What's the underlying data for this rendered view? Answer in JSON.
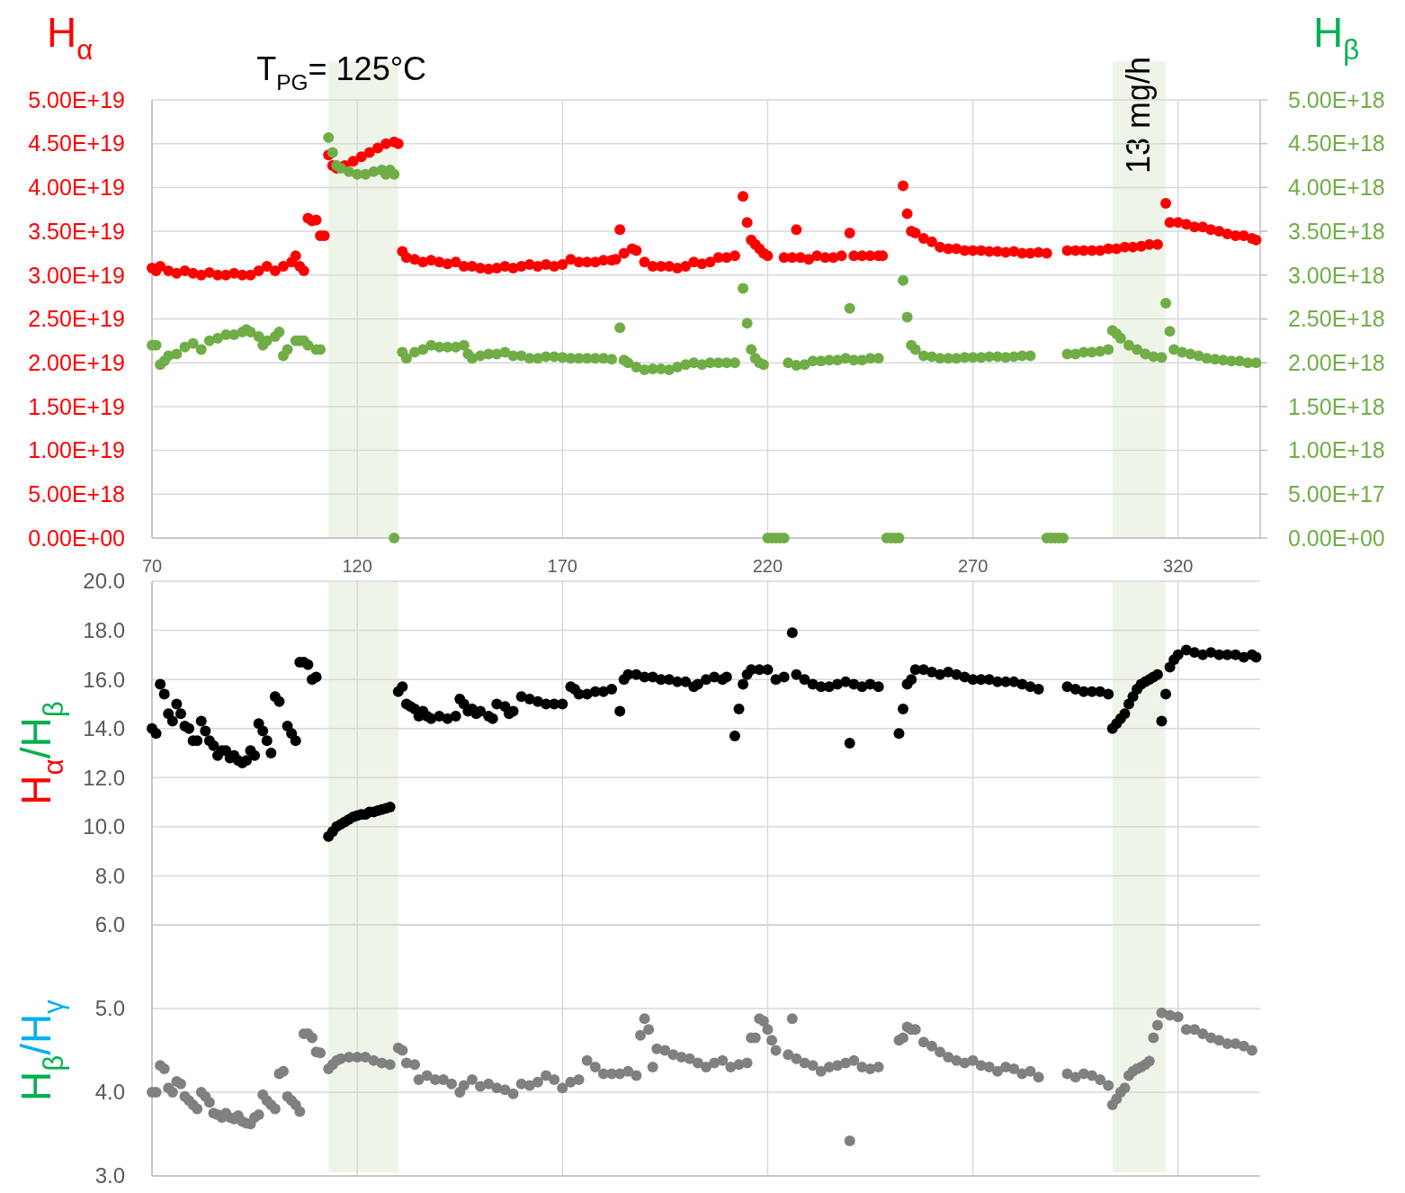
{
  "chart_data": [
    {
      "type": "scatter",
      "ylabel": "H$_{α}$",
      "y2label": "H$_{β}$",
      "xlim": [
        70,
        340
      ],
      "xticks": [
        70,
        120,
        170,
        220,
        270,
        320
      ],
      "ylim": [
        0,
        5e+19
      ],
      "yticks": [
        {
          "value": 0,
          "label": "0.00E+00"
        },
        {
          "value": 5e+18,
          "label": "5.00E+18"
        },
        {
          "value": 1e+19,
          "label": "1.00E+19"
        },
        {
          "value": 1.5e+19,
          "label": "1.50E+19"
        },
        {
          "value": 2e+19,
          "label": "2.00E+19"
        },
        {
          "value": 2.5e+19,
          "label": "2.50E+19"
        },
        {
          "value": 3e+19,
          "label": "3.00E+19"
        },
        {
          "value": 3.5e+19,
          "label": "3.50E+19"
        },
        {
          "value": 4e+19,
          "label": "4.00E+19"
        },
        {
          "value": 4.5e+19,
          "label": "4.50E+19"
        },
        {
          "value": 5e+19,
          "label": "5.00E+19"
        }
      ],
      "y2lim": [
        0,
        5e+18
      ],
      "y2ticks": [
        {
          "value": 0,
          "label": "0.00E+00"
        },
        {
          "value": 5e+17,
          "label": "5.00E+17"
        },
        {
          "value": 1e+18,
          "label": "1.00E+18"
        },
        {
          "value": 1.5e+18,
          "label": "1.50E+18"
        },
        {
          "value": 2e+18,
          "label": "2.00E+18"
        },
        {
          "value": 2.5e+18,
          "label": "2.50E+18"
        },
        {
          "value": 3e+18,
          "label": "3.00E+18"
        },
        {
          "value": 3.5e+18,
          "label": "3.50E+18"
        },
        {
          "value": 4e+18,
          "label": "4.00E+18"
        },
        {
          "value": 4.5e+18,
          "label": "4.50E+18"
        },
        {
          "value": 5e+18,
          "label": "5.00E+18"
        }
      ],
      "grid": true,
      "marker": "circle",
      "bands": [
        {
          "axis": "x",
          "from": 113,
          "to": 130,
          "label": "T$_{PG}$= 125°C",
          "color": "#eef5e8"
        },
        {
          "axis": "x",
          "from": 304,
          "to": 317,
          "label": "13 mg/h",
          "color": "#eef5e8"
        }
      ],
      "series": [
        {
          "color": "#ff0000",
          "x": [
            70,
            71,
            72,
            74,
            76,
            78,
            80,
            82,
            84,
            86,
            88,
            90,
            92,
            94,
            96,
            98,
            100,
            102,
            104,
            105,
            106,
            107,
            108,
            109,
            110,
            111,
            112,
            113,
            114,
            115,
            117,
            119,
            121,
            123,
            125,
            127,
            129,
            130,
            131,
            132,
            134,
            136,
            138,
            140,
            142,
            144,
            146,
            148,
            150,
            152,
            154,
            156,
            158,
            160,
            162,
            164,
            166,
            168,
            170,
            172,
            174,
            176,
            178,
            180,
            182,
            183,
            184,
            185,
            187,
            188,
            190,
            192,
            194,
            196,
            198,
            200,
            202,
            204,
            206,
            208,
            210,
            212,
            214,
            215,
            216,
            217,
            218,
            219,
            220,
            224,
            226,
            227,
            228,
            230,
            232,
            234,
            236,
            238,
            240,
            241,
            243,
            245,
            247,
            248,
            253,
            254,
            255,
            256,
            258,
            260,
            262,
            264,
            266,
            268,
            270,
            272,
            274,
            276,
            278,
            280,
            282,
            284,
            286,
            288,
            293,
            295,
            297,
            299,
            301,
            303,
            305,
            307,
            309,
            311,
            313,
            315,
            317,
            318,
            320,
            322,
            324,
            326,
            328,
            330,
            332,
            334,
            336,
            338,
            339
          ],
          "values": [
            3.08e+19,
            3.05e+19,
            3.1e+19,
            3.05e+19,
            3.02e+19,
            3.05e+19,
            3.02e+19,
            3e+19,
            3.03e+19,
            3e+19,
            3e+19,
            3.02e+19,
            3e+19,
            3e+19,
            3.05e+19,
            3.1e+19,
            3.05e+19,
            3.1e+19,
            3.15e+19,
            3.22e+19,
            3.1e+19,
            3.05e+19,
            3.65e+19,
            3.62e+19,
            3.63e+19,
            3.45e+19,
            3.45e+19,
            4.37e+19,
            4.25e+19,
            4.22e+19,
            4.25e+19,
            4.3e+19,
            4.35e+19,
            4.4e+19,
            4.45e+19,
            4.5e+19,
            4.52e+19,
            4.5e+19,
            3.27e+19,
            3.2e+19,
            3.18e+19,
            3.15e+19,
            3.17e+19,
            3.15e+19,
            3.13e+19,
            3.15e+19,
            3.1e+19,
            3.1e+19,
            3.08e+19,
            3.07e+19,
            3.08e+19,
            3.1e+19,
            3.08e+19,
            3.1e+19,
            3.12e+19,
            3.1e+19,
            3.12e+19,
            3.1e+19,
            3.12e+19,
            3.18e+19,
            3.15e+19,
            3.15e+19,
            3.15e+19,
            3.17e+19,
            3.17e+19,
            3.18e+19,
            3.52e+19,
            3.25e+19,
            3.3e+19,
            3.28e+19,
            3.15e+19,
            3.1e+19,
            3.1e+19,
            3.1e+19,
            3.08e+19,
            3.1e+19,
            3.15e+19,
            3.13e+19,
            3.15e+19,
            3.2e+19,
            3.2e+19,
            3.22e+19,
            3.9e+19,
            3.6e+19,
            3.4e+19,
            3.35e+19,
            3.3e+19,
            3.25e+19,
            3.22e+19,
            3.2e+19,
            3.2e+19,
            3.52e+19,
            3.2e+19,
            3.18e+19,
            3.22e+19,
            3.2e+19,
            3.2e+19,
            3.22e+19,
            3.48e+19,
            3.22e+19,
            3.22e+19,
            3.22e+19,
            3.22e+19,
            3.22e+19,
            4.02e+19,
            3.7e+19,
            3.5e+19,
            3.48e+19,
            3.42e+19,
            3.38e+19,
            3.32e+19,
            3.3e+19,
            3.3e+19,
            3.28e+19,
            3.28e+19,
            3.28e+19,
            3.27e+19,
            3.27e+19,
            3.26e+19,
            3.27e+19,
            3.25e+19,
            3.25e+19,
            3.26e+19,
            3.25e+19,
            3.28e+19,
            3.28e+19,
            3.28e+19,
            3.28e+19,
            3.28e+19,
            3.3e+19,
            3.3e+19,
            3.32e+19,
            3.32e+19,
            3.33e+19,
            3.35e+19,
            3.35e+19,
            3.82e+19,
            3.6e+19,
            3.6e+19,
            3.58e+19,
            3.55e+19,
            3.55e+19,
            3.52e+19,
            3.5e+19,
            3.47e+19,
            3.45e+19,
            3.45e+19,
            3.42e+19,
            3.4e+19
          ]
        },
        {
          "color": "#70ad47",
          "axis": "y2",
          "x": [
            70,
            71,
            72,
            73,
            74,
            76,
            78,
            80,
            82,
            84,
            86,
            88,
            90,
            92,
            93,
            94,
            96,
            97,
            98,
            100,
            101,
            102,
            103,
            105,
            106,
            107,
            108,
            110,
            111,
            113,
            114,
            115,
            116,
            118,
            120,
            122,
            124,
            126,
            127,
            128,
            129,
            129,
            131,
            132,
            134,
            136,
            138,
            140,
            142,
            144,
            146,
            147,
            148,
            150,
            152,
            154,
            156,
            158,
            160,
            162,
            164,
            166,
            168,
            170,
            172,
            174,
            176,
            178,
            180,
            182,
            184,
            185,
            186,
            188,
            190,
            192,
            194,
            196,
            198,
            200,
            202,
            204,
            206,
            208,
            210,
            212,
            214,
            215,
            216,
            217,
            218,
            219,
            220,
            221,
            222,
            223,
            224,
            225,
            227,
            229,
            231,
            233,
            235,
            237,
            239,
            240,
            241,
            243,
            245,
            247,
            249,
            250,
            251,
            252,
            253,
            254,
            255,
            256,
            258,
            260,
            262,
            264,
            266,
            268,
            270,
            272,
            274,
            276,
            278,
            280,
            282,
            284,
            288,
            289,
            290,
            291,
            292,
            293,
            295,
            297,
            299,
            301,
            303,
            304,
            305,
            306,
            308,
            310,
            312,
            314,
            316,
            317,
            318,
            319,
            321,
            323,
            325,
            327,
            329,
            331,
            333,
            335,
            337,
            339
          ],
          "values": [
            2.2e+18,
            2.2e+18,
            1.98e+18,
            2.02e+18,
            2.08e+18,
            2.1e+18,
            2.18e+18,
            2.22e+18,
            2.15e+18,
            2.25e+18,
            2.28e+18,
            2.32e+18,
            2.32e+18,
            2.35e+18,
            2.38e+18,
            2.35e+18,
            2.3e+18,
            2.2e+18,
            2.25e+18,
            2.3e+18,
            2.35e+18,
            2.08e+18,
            2.15e+18,
            2.25e+18,
            2.25e+18,
            2.25e+18,
            2.2e+18,
            2.15e+18,
            2.15e+18,
            4.57e+18,
            4.4e+18,
            4.25e+18,
            4.22e+18,
            4.18e+18,
            4.15e+18,
            4.15e+18,
            4.18e+18,
            4.2e+18,
            4.15e+18,
            4.2e+18,
            4.15e+18,
            0,
            2.12e+18,
            2.05e+18,
            2.12e+18,
            2.15e+18,
            2.2e+18,
            2.18e+18,
            2.18e+18,
            2.18e+18,
            2.2e+18,
            2.1e+18,
            2.05e+18,
            2.08e+18,
            2.1e+18,
            2.1e+18,
            2.12e+18,
            2.08e+18,
            2.08e+18,
            2.05e+18,
            2.05e+18,
            2.07e+18,
            2.07e+18,
            2.06e+18,
            2.05e+18,
            2.05e+18,
            2.05e+18,
            2.05e+18,
            2.05e+18,
            2.04e+18,
            2.4e+18,
            2.03e+18,
            2e+18,
            1.95e+18,
            1.92e+18,
            1.93e+18,
            1.93e+18,
            1.92e+18,
            1.95e+18,
            1.98e+18,
            2e+18,
            1.98e+18,
            2e+18,
            2e+18,
            2e+18,
            2e+18,
            2.85e+18,
            2.45e+18,
            2.15e+18,
            2.05e+18,
            2e+18,
            1.98e+18,
            0,
            0,
            0,
            0,
            0,
            2e+18,
            1.97e+18,
            1.98e+18,
            2.02e+18,
            2.02e+18,
            2.03e+18,
            2.03e+18,
            2.05e+18,
            2.62e+18,
            2.03e+18,
            2.03e+18,
            2.05e+18,
            2.05e+18,
            0,
            0,
            0,
            0,
            2.94e+18,
            2.52e+18,
            2.2e+18,
            2.15e+18,
            2.08e+18,
            2.07e+18,
            2.05e+18,
            2.05e+18,
            2.05e+18,
            2.06e+18,
            2.06e+18,
            2.06e+18,
            2.07e+18,
            2.07e+18,
            2.06e+18,
            2.07e+18,
            2.08e+18,
            2.08e+18,
            0,
            0,
            0,
            0,
            0,
            2.1e+18,
            2.1e+18,
            2.12e+18,
            2.12e+18,
            2.13e+18,
            2.15e+18,
            2.37e+18,
            2.33e+18,
            2.28e+18,
            2.2e+18,
            2.15e+18,
            2.1e+18,
            2.07e+18,
            2.06e+18,
            2.68e+18,
            2.36e+18,
            2.15e+18,
            2.12e+18,
            2.1e+18,
            2.08e+18,
            2.05e+18,
            2.04e+18,
            2.03e+18,
            2.02e+18,
            2.02e+18,
            2e+18,
            2e+18
          ]
        }
      ]
    },
    {
      "type": "scatter",
      "ylabel": "H$_{α}$/H$_{β}$",
      "xlim": [
        70,
        340
      ],
      "xticks": [
        70,
        120,
        170,
        220,
        270,
        320
      ],
      "ylim": [
        6,
        20
      ],
      "yticks": [
        {
          "value": 6,
          "label": "6.0"
        },
        {
          "value": 8,
          "label": "8.0"
        },
        {
          "value": 10,
          "label": "10.0"
        },
        {
          "value": 12,
          "label": "12.0"
        },
        {
          "value": 14,
          "label": "14.0"
        },
        {
          "value": 16,
          "label": "16.0"
        },
        {
          "value": 18,
          "label": "18.0"
        },
        {
          "value": 20,
          "label": "20.0"
        }
      ],
      "tick_labels": "y",
      "grid": true,
      "marker": "circle",
      "bands": [
        {
          "axis": "x",
          "from": 113,
          "to": 130,
          "color": "#eef5e8"
        },
        {
          "axis": "x",
          "from": 304,
          "to": 317,
          "color": "#eef5e8"
        }
      ],
      "series": [
        {
          "color": "#000000",
          "x": [
            70,
            71,
            72,
            73,
            74,
            75,
            76,
            77,
            78,
            79,
            80,
            81,
            82,
            83,
            84,
            85,
            86,
            87,
            88,
            89,
            90,
            91,
            92,
            93,
            94,
            95,
            96,
            97,
            98,
            99,
            100,
            101,
            103,
            104,
            105,
            106,
            107,
            108,
            109,
            110,
            113,
            114,
            115,
            116,
            117,
            118,
            119,
            120,
            121,
            122,
            123,
            124,
            125,
            126,
            127,
            128,
            130,
            131,
            132,
            133,
            134,
            135,
            136,
            137,
            138,
            140,
            142,
            144,
            145,
            146,
            147,
            148,
            149,
            150,
            152,
            153,
            154,
            156,
            157,
            158,
            160,
            162,
            164,
            166,
            168,
            170,
            172,
            173,
            174,
            176,
            178,
            180,
            182,
            184,
            185,
            186,
            188,
            190,
            192,
            194,
            196,
            198,
            200,
            202,
            203,
            205,
            207,
            209,
            210,
            212,
            213,
            214,
            215,
            216,
            218,
            220,
            222,
            224,
            226,
            227,
            229,
            231,
            233,
            235,
            237,
            239,
            240,
            241,
            243,
            245,
            247,
            252,
            253,
            254,
            255,
            256,
            258,
            260,
            262,
            264,
            266,
            268,
            270,
            272,
            274,
            276,
            278,
            280,
            282,
            284,
            286,
            293,
            295,
            297,
            299,
            301,
            303,
            304,
            305,
            306,
            307,
            308,
            309,
            310,
            311,
            312,
            313,
            314,
            315,
            316,
            317,
            318,
            319,
            320,
            322,
            324,
            326,
            328,
            330,
            332,
            334,
            336,
            338,
            339
          ],
          "values": [
            14.0,
            13.8,
            15.8,
            15.4,
            14.6,
            14.3,
            15.0,
            14.6,
            14.1,
            14.0,
            13.5,
            13.5,
            14.3,
            13.9,
            13.5,
            13.3,
            12.9,
            13.1,
            13.1,
            12.8,
            12.9,
            12.7,
            12.6,
            12.7,
            13.1,
            12.9,
            14.2,
            13.9,
            13.5,
            13.0,
            15.3,
            15.1,
            14.1,
            13.8,
            13.5,
            16.7,
            16.7,
            16.6,
            16.0,
            16.1,
            9.6,
            9.8,
            10.0,
            10.1,
            10.2,
            10.3,
            10.4,
            10.45,
            10.5,
            10.5,
            10.6,
            10.6,
            10.65,
            10.7,
            10.75,
            10.8,
            15.5,
            15.7,
            15.0,
            14.9,
            14.8,
            14.5,
            14.7,
            14.5,
            14.4,
            14.5,
            14.4,
            14.5,
            15.2,
            15.0,
            14.7,
            14.8,
            14.6,
            14.7,
            14.5,
            14.4,
            15.0,
            14.9,
            14.6,
            14.7,
            15.3,
            15.2,
            15.1,
            15.0,
            15.0,
            15.0,
            15.7,
            15.6,
            15.4,
            15.4,
            15.5,
            15.5,
            15.6,
            14.7,
            16.0,
            16.2,
            16.2,
            16.1,
            16.1,
            16.0,
            16.0,
            15.9,
            15.9,
            15.7,
            15.8,
            16.0,
            16.1,
            16.0,
            16.1,
            13.7,
            14.8,
            15.8,
            16.2,
            16.4,
            16.4,
            16.4,
            16.0,
            16.1,
            17.9,
            16.2,
            16.0,
            15.8,
            15.7,
            15.7,
            15.8,
            15.9,
            13.4,
            15.8,
            15.7,
            15.8,
            15.7,
            13.8,
            14.8,
            15.8,
            16.0,
            16.4,
            16.4,
            16.3,
            16.2,
            16.3,
            16.2,
            16.1,
            16.0,
            16.0,
            16.0,
            15.9,
            15.9,
            15.9,
            15.8,
            15.7,
            15.6,
            15.7,
            15.6,
            15.5,
            15.5,
            15.5,
            15.4,
            14.0,
            14.2,
            14.4,
            14.6,
            15.0,
            15.3,
            15.6,
            15.8,
            15.9,
            16.0,
            16.1,
            16.2,
            14.3,
            15.4,
            16.5,
            16.8,
            17.0,
            17.2,
            17.1,
            17.0,
            17.1,
            17.0,
            17.0,
            17.0,
            16.9,
            17.0,
            16.9
          ]
        }
      ]
    },
    {
      "type": "scatter",
      "ylabel": "H$_{β}$/H$_{γ}$",
      "xlim": [
        70,
        340
      ],
      "xticks": [
        70,
        120,
        170,
        220,
        270,
        320
      ],
      "ylim": [
        3,
        6
      ],
      "yticks": [
        {
          "value": 3,
          "label": "3.0"
        },
        {
          "value": 4,
          "label": "4.0"
        },
        {
          "value": 5,
          "label": "5.0"
        },
        {
          "value": 6,
          "label": null
        }
      ],
      "tick_labels": "y",
      "grid": true,
      "marker": "circle",
      "bands": [
        {
          "axis": "x",
          "from": 113,
          "to": 130,
          "color": "#eef5e8"
        },
        {
          "axis": "x",
          "from": 304,
          "to": 317,
          "color": "#eef5e8"
        }
      ],
      "series": [
        {
          "color": "#808080",
          "x": [
            70,
            71,
            72,
            73,
            74,
            75,
            76,
            77,
            78,
            79,
            80,
            81,
            82,
            83,
            84,
            85,
            86,
            87,
            88,
            89,
            90,
            91,
            92,
            93,
            94,
            95,
            96,
            97,
            98,
            99,
            100,
            101,
            102,
            103,
            104,
            105,
            106,
            107,
            108,
            109,
            110,
            111,
            113,
            114,
            115,
            116,
            118,
            120,
            122,
            124,
            126,
            128,
            130,
            131,
            132,
            134,
            135,
            137,
            139,
            141,
            143,
            145,
            146,
            148,
            150,
            152,
            154,
            156,
            158,
            160,
            162,
            164,
            166,
            168,
            170,
            172,
            174,
            176,
            178,
            180,
            182,
            184,
            186,
            188,
            189,
            190,
            191,
            192,
            193,
            195,
            197,
            199,
            201,
            203,
            205,
            207,
            209,
            211,
            213,
            215,
            216,
            217,
            218,
            219,
            220,
            221,
            222,
            225,
            226,
            227,
            229,
            231,
            233,
            235,
            237,
            239,
            240,
            241,
            243,
            245,
            247,
            252,
            253,
            254,
            255,
            256,
            258,
            260,
            262,
            264,
            266,
            268,
            270,
            272,
            274,
            276,
            278,
            280,
            282,
            284,
            286,
            293,
            295,
            297,
            299,
            301,
            303,
            304,
            305,
            306,
            307,
            308,
            309,
            310,
            311,
            312,
            313,
            314,
            315,
            316,
            318,
            320,
            322,
            324,
            326,
            328,
            330,
            332,
            334,
            336,
            338
          ],
          "values": [
            4.0,
            4.0,
            4.32,
            4.28,
            4.05,
            4.0,
            4.13,
            4.1,
            3.95,
            3.9,
            3.85,
            3.8,
            4.0,
            3.95,
            3.88,
            3.75,
            3.73,
            3.7,
            3.75,
            3.7,
            3.68,
            3.72,
            3.65,
            3.63,
            3.62,
            3.7,
            3.73,
            3.97,
            3.9,
            3.85,
            3.8,
            4.22,
            4.25,
            3.95,
            3.9,
            3.85,
            3.77,
            4.7,
            4.7,
            4.65,
            4.48,
            4.47,
            4.28,
            4.33,
            4.38,
            4.4,
            4.42,
            4.42,
            4.42,
            4.38,
            4.35,
            4.33,
            4.53,
            4.5,
            4.35,
            4.33,
            4.15,
            4.2,
            4.15,
            4.15,
            4.1,
            4.0,
            4.08,
            4.15,
            4.07,
            4.1,
            4.05,
            4.03,
            3.98,
            4.1,
            4.08,
            4.12,
            4.2,
            4.15,
            4.05,
            4.12,
            4.15,
            4.38,
            4.3,
            4.22,
            4.22,
            4.22,
            4.25,
            4.2,
            4.68,
            4.88,
            4.75,
            4.3,
            4.52,
            4.5,
            4.45,
            4.42,
            4.4,
            4.35,
            4.3,
            4.35,
            4.38,
            4.3,
            4.33,
            4.35,
            4.65,
            4.65,
            4.88,
            4.85,
            4.75,
            4.62,
            4.5,
            4.45,
            4.88,
            4.4,
            4.35,
            4.32,
            4.25,
            4.3,
            4.32,
            4.35,
            3.42,
            4.38,
            4.3,
            4.28,
            4.3,
            4.62,
            4.65,
            4.78,
            4.75,
            4.75,
            4.6,
            4.55,
            4.48,
            4.42,
            4.38,
            4.35,
            4.38,
            4.32,
            4.3,
            4.25,
            4.3,
            4.28,
            4.22,
            4.25,
            4.18,
            4.22,
            4.18,
            4.22,
            4.2,
            4.15,
            4.08,
            3.85,
            3.92,
            4.0,
            4.05,
            4.2,
            4.25,
            4.28,
            4.3,
            4.33,
            4.37,
            4.65,
            4.8,
            4.95,
            4.92,
            4.9,
            4.75,
            4.75,
            4.7,
            4.65,
            4.62,
            4.58,
            4.58,
            4.55,
            4.5
          ]
        }
      ]
    }
  ]
}
